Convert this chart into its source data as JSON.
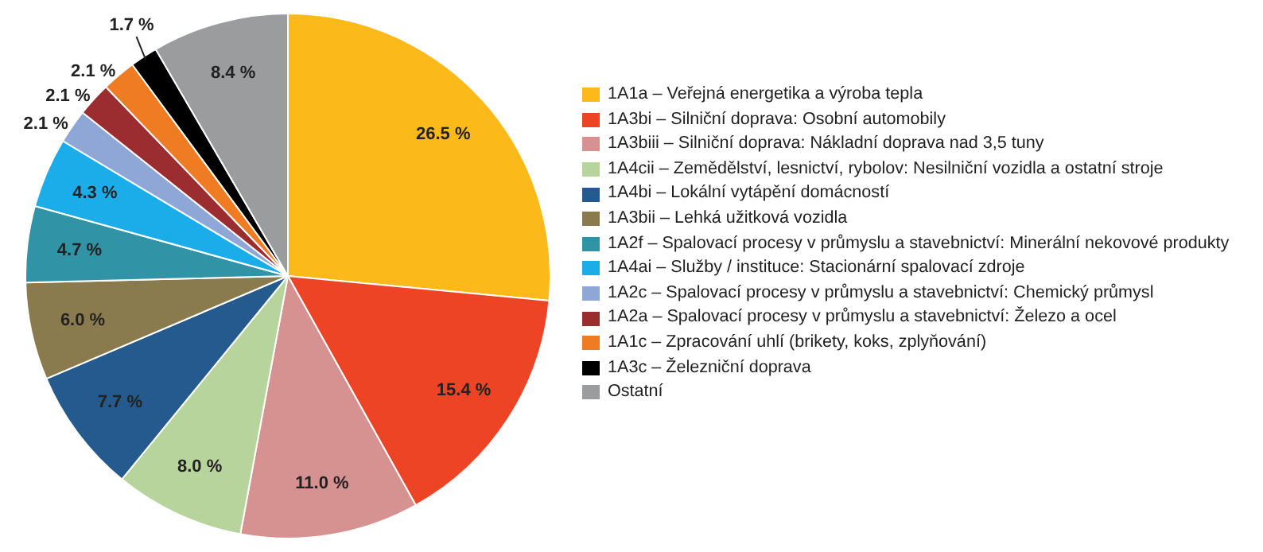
{
  "chart_data": {
    "type": "pie",
    "categories": [
      "1A1a – Veřejná energetika a výroba tepla",
      "1A3bi – Silniční doprava: Osobní automobily",
      "1A3biii – Silniční doprava: Nákladní doprava nad 3,5 tuny",
      "1A4cii – Zemědělství, lesnictví, rybolov: Nesilniční vozidla a ostatní stroje",
      "1A4bi – Lokální vytápění domácností",
      "1A3bii – Lehká užitková vozidla",
      "1A2f – Spalovací procesy v průmyslu a stavebnictví: Minerální nekovové produkty",
      "1A4ai – Služby / instituce: Stacionární spalovací zdroje",
      "1A2c – Spalovací procesy v průmyslu a stavebnictví: Chemický průmysl",
      "1A2a – Spalovací procesy v průmyslu a stavebnictví: Železo a ocel",
      "1A1c – Zpracování uhlí (brikety, koks, zplyňování)",
      "1A3c – Železniční doprava",
      "Ostatní"
    ],
    "values": [
      26.5,
      15.4,
      11.0,
      8.0,
      7.7,
      6.0,
      4.7,
      4.3,
      2.1,
      2.1,
      2.1,
      1.7,
      8.4
    ],
    "value_labels": [
      "26.5 %",
      "15.4 %",
      "11.0 %",
      "8.0 %",
      "7.7 %",
      "6.0 %",
      "4.7 %",
      "4.3 %",
      "2.1 %",
      "2.1 %",
      "2.1 %",
      "1.7 %",
      "8.4 %"
    ],
    "colors": [
      "#fbb91a",
      "#ee4426",
      "#d69290",
      "#b7d49c",
      "#245a8e",
      "#8a7b4f",
      "#3193a6",
      "#1badea",
      "#8ea7d6",
      "#9b2c30",
      "#ef7b22",
      "#000000",
      "#9b9c9e"
    ],
    "legend": "right"
  }
}
